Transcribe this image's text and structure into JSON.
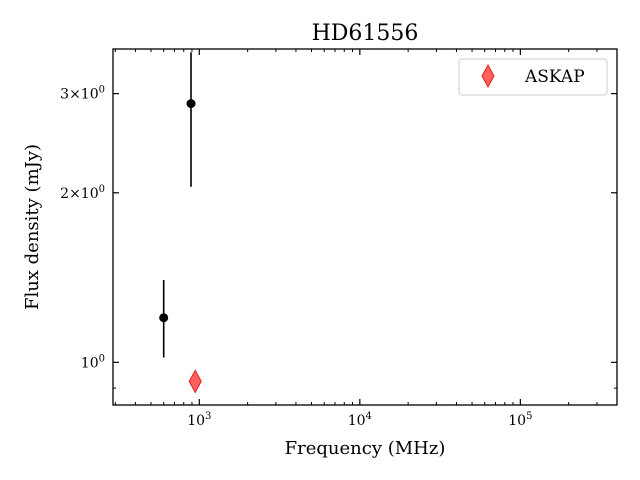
{
  "chart_data": {
    "type": "scatter",
    "title": "HD61556",
    "xlabel": "Frequency (MHz)",
    "ylabel": "Flux density (mJy)",
    "x_scale": "log",
    "y_scale": "log",
    "xlim": [
      290,
      400000
    ],
    "ylim": [
      0.84,
      3.6
    ],
    "grid": false,
    "legend_position": "top-right",
    "x_ticks": [
      {
        "value": 1000,
        "base": "10",
        "exp": "3"
      },
      {
        "value": 10000,
        "base": "10",
        "exp": "4"
      },
      {
        "value": 100000,
        "base": "10",
        "exp": "5"
      }
    ],
    "y_ticks": [
      {
        "value": 1,
        "mant": "",
        "base": "10",
        "exp": "0"
      },
      {
        "value": 2,
        "mant": "2×",
        "base": "10",
        "exp": "0"
      },
      {
        "value": 3,
        "mant": "3×",
        "base": "10",
        "exp": "0"
      }
    ],
    "series": [
      {
        "name": "",
        "marker": "circle",
        "color": "#000000",
        "points": [
          {
            "x": 600,
            "y": 1.2,
            "ylo": 1.02,
            "yhi": 1.4
          },
          {
            "x": 888,
            "y": 2.88,
            "ylo": 2.05,
            "yhi": 3.55
          }
        ]
      },
      {
        "name": "ASKAP",
        "marker": "thin-diamond",
        "color": "#ff4444",
        "points": [
          {
            "x": 943,
            "y": 0.925
          }
        ]
      }
    ]
  }
}
